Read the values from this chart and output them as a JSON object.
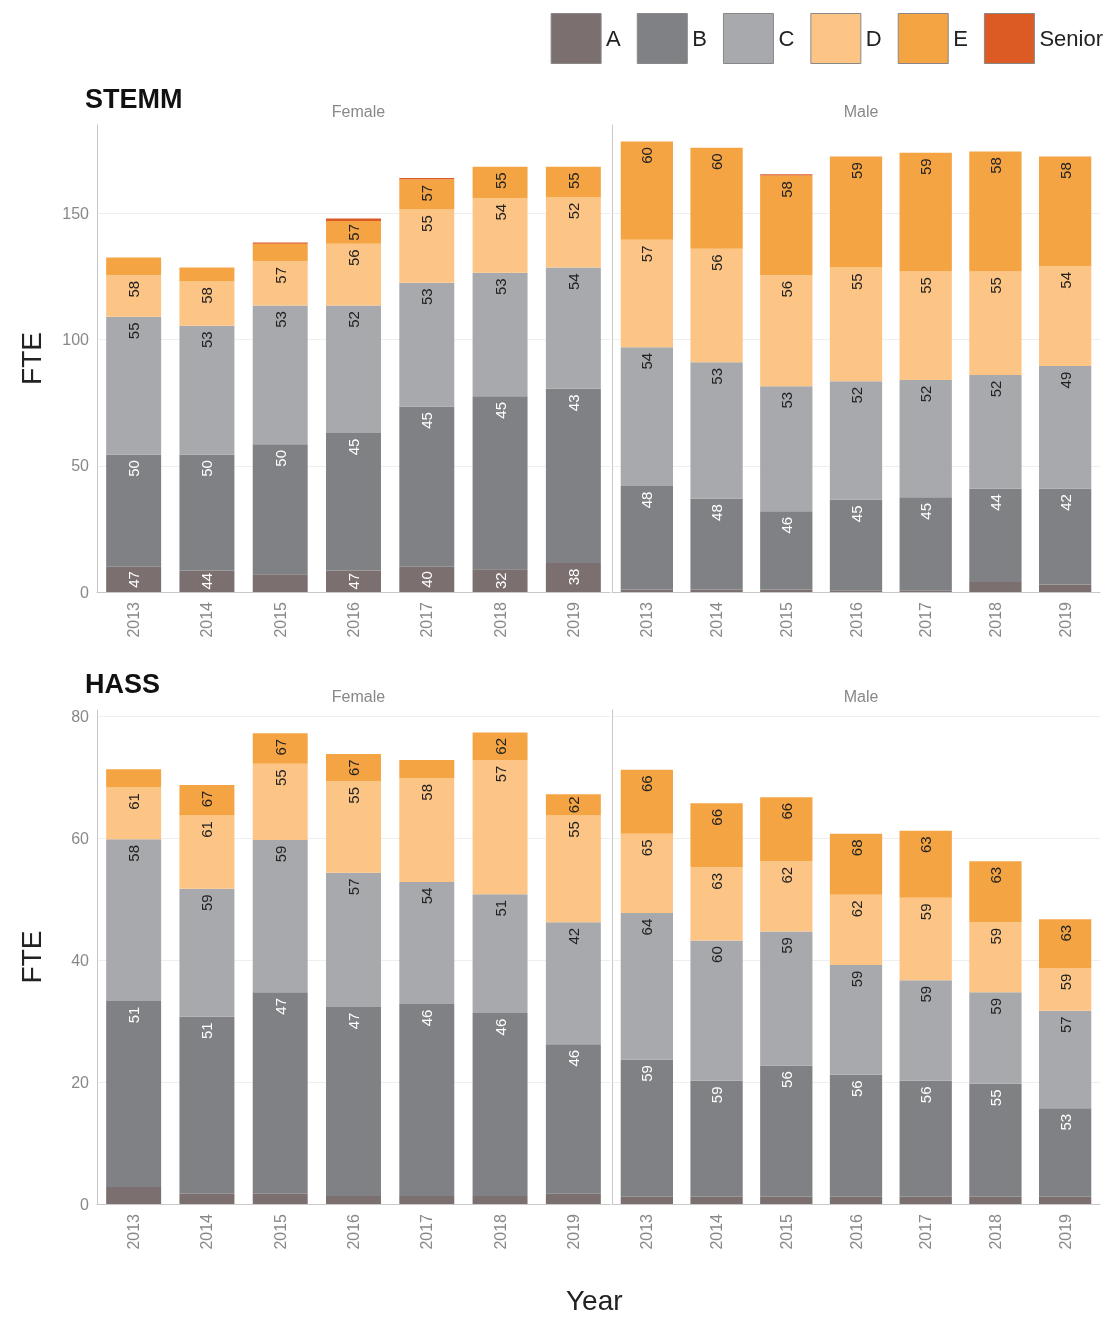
{
  "chart_data": [
    {
      "type": "bar",
      "stacked": true,
      "title": "STEMM",
      "subtitle": "Female",
      "ylabel": "FTE",
      "legend": "top right",
      "grid": "y",
      "categories": [
        "2013",
        "2014",
        "2015",
        "2016",
        "2017",
        "2018",
        "2019"
      ],
      "ylim": [
        0,
        185
      ],
      "yticks": [
        0,
        50,
        100,
        150
      ],
      "series": [
        {
          "name": "A",
          "color": "#7b6f6f",
          "values": [
            10,
            8.5,
            7,
            8.5,
            10,
            9,
            11.5
          ]
        },
        {
          "name": "B",
          "color": "#7f8184",
          "values": [
            44.5,
            46,
            51.5,
            54.5,
            63.5,
            68.5,
            69
          ]
        },
        {
          "name": "C",
          "color": "#a8a9ad",
          "values": [
            54.5,
            51,
            55,
            50.5,
            49,
            49,
            48
          ]
        },
        {
          "name": "D",
          "color": "#fdc585",
          "values": [
            16.5,
            17.5,
            17.5,
            24.5,
            29,
            29.5,
            28
          ]
        },
        {
          "name": "E",
          "color": "#f4a443",
          "values": [
            7,
            5.5,
            7,
            9,
            12,
            12.5,
            12
          ]
        },
        {
          "name": "Senior",
          "color": "#dc5a23",
          "values": [
            null,
            null,
            0.5,
            1,
            0.5,
            null,
            null
          ]
        }
      ],
      "annotations": [
        {
          "text": "47",
          "x": "2013",
          "y": 10
        },
        {
          "text": "50",
          "x": "2013",
          "y": 54.5
        },
        {
          "text": "55",
          "x": "2013",
          "y": 109
        },
        {
          "text": "58",
          "x": "2013",
          "y": 125.5
        },
        {
          "text": "44",
          "x": "2014",
          "y": 8.5
        },
        {
          "text": "50",
          "x": "2014",
          "y": 54.5
        },
        {
          "text": "53",
          "x": "2014",
          "y": 105.5
        },
        {
          "text": "58",
          "x": "2014",
          "y": 123
        },
        {
          "text": "50",
          "x": "2015",
          "y": 58.5
        },
        {
          "text": "53",
          "x": "2015",
          "y": 113.5
        },
        {
          "text": "57",
          "x": "2015",
          "y": 131
        },
        {
          "text": "47",
          "x": "2016",
          "y": 8.5
        },
        {
          "text": "45",
          "x": "2016",
          "y": 63
        },
        {
          "text": "52",
          "x": "2016",
          "y": 113.5
        },
        {
          "text": "56",
          "x": "2016",
          "y": 138
        },
        {
          "text": "57",
          "x": "2016",
          "y": 147
        },
        {
          "text": "40",
          "x": "2017",
          "y": 10
        },
        {
          "text": "45",
          "x": "2017",
          "y": 73.5
        },
        {
          "text": "53",
          "x": "2017",
          "y": 122.5
        },
        {
          "text": "55",
          "x": "2017",
          "y": 151.5
        },
        {
          "text": "57",
          "x": "2017",
          "y": 163.5
        },
        {
          "text": "32",
          "x": "2018",
          "y": 9
        },
        {
          "text": "45",
          "x": "2018",
          "y": 77.5
        },
        {
          "text": "53",
          "x": "2018",
          "y": 126.5
        },
        {
          "text": "54",
          "x": "2018",
          "y": 156
        },
        {
          "text": "55",
          "x": "2018",
          "y": 168.5
        },
        {
          "text": "38",
          "x": "2019",
          "y": 11.5
        },
        {
          "text": "43",
          "x": "2019",
          "y": 80.5
        },
        {
          "text": "54",
          "x": "2019",
          "y": 128.5
        },
        {
          "text": "52",
          "x": "2019",
          "y": 156.5
        },
        {
          "text": "55",
          "x": "2019",
          "y": 168.5
        }
      ]
    },
    {
      "type": "bar",
      "stacked": true,
      "subtitle": "Male",
      "tick_labels": "x",
      "grid": "y",
      "categories": [
        "2013",
        "2014",
        "2015",
        "2016",
        "2017",
        "2018",
        "2019"
      ],
      "ylim": [
        0,
        185
      ],
      "yticks": [
        0,
        50,
        100,
        150
      ],
      "series": [
        {
          "color": "#7b6f6f",
          "values": [
            1,
            1,
            1,
            0.5,
            0.5,
            4,
            3
          ]
        },
        {
          "color": "#7f8184",
          "values": [
            41,
            36,
            31,
            36,
            37,
            37,
            38
          ]
        },
        {
          "color": "#a8a9ad",
          "values": [
            55,
            54,
            49.5,
            47,
            46.5,
            45,
            48.5
          ]
        },
        {
          "color": "#fdc585",
          "values": [
            42.5,
            45,
            44,
            45,
            43,
            41,
            39.5
          ]
        },
        {
          "color": "#f4a443",
          "values": [
            39,
            40,
            39.5,
            44,
            47,
            47.5,
            43.5
          ]
        },
        {
          "color": "#dc5a23",
          "values": [
            null,
            null,
            0.5,
            null,
            null,
            null,
            null
          ]
        }
      ],
      "annotations": [
        {
          "text": "48",
          "x": "2013",
          "y": 42
        },
        {
          "text": "54",
          "x": "2013",
          "y": 97
        },
        {
          "text": "57",
          "x": "2013",
          "y": 139.5
        },
        {
          "text": "60",
          "x": "2013",
          "y": 178.5
        },
        {
          "text": "48",
          "x": "2014",
          "y": 37
        },
        {
          "text": "53",
          "x": "2014",
          "y": 91
        },
        {
          "text": "56",
          "x": "2014",
          "y": 136
        },
        {
          "text": "60",
          "x": "2014",
          "y": 176
        },
        {
          "text": "46",
          "x": "2015",
          "y": 32
        },
        {
          "text": "53",
          "x": "2015",
          "y": 81.5
        },
        {
          "text": "56",
          "x": "2015",
          "y": 125.5
        },
        {
          "text": "58",
          "x": "2015",
          "y": 165
        },
        {
          "text": "45",
          "x": "2016",
          "y": 36.5
        },
        {
          "text": "52",
          "x": "2016",
          "y": 83.5
        },
        {
          "text": "55",
          "x": "2016",
          "y": 128.5
        },
        {
          "text": "59",
          "x": "2016",
          "y": 172.5
        },
        {
          "text": "45",
          "x": "2017",
          "y": 37.5
        },
        {
          "text": "52",
          "x": "2017",
          "y": 84
        },
        {
          "text": "55",
          "x": "2017",
          "y": 127
        },
        {
          "text": "59",
          "x": "2017",
          "y": 174
        },
        {
          "text": "44",
          "x": "2018",
          "y": 41
        },
        {
          "text": "52",
          "x": "2018",
          "y": 86
        },
        {
          "text": "55",
          "x": "2018",
          "y": 127
        },
        {
          "text": "58",
          "x": "2018",
          "y": 174.5
        },
        {
          "text": "42",
          "x": "2019",
          "y": 41
        },
        {
          "text": "49",
          "x": "2019",
          "y": 89.5
        },
        {
          "text": "54",
          "x": "2019",
          "y": 129
        },
        {
          "text": "58",
          "x": "2019",
          "y": 172.5
        }
      ]
    },
    {
      "type": "bar",
      "stacked": true,
      "title": "HASS",
      "subtitle": "Female",
      "ylabel": "FTE",
      "xlabel": "Year",
      "grid": "y",
      "categories": [
        "2013",
        "2014",
        "2015",
        "2016",
        "2017",
        "2018",
        "2019"
      ],
      "ylim": [
        0,
        81
      ],
      "yticks": [
        0,
        20,
        40,
        60,
        80
      ],
      "series": [
        {
          "color": "#7b6f6f",
          "values": [
            2.8,
            1.7,
            1.7,
            1.3,
            1.3,
            1.3,
            1.7
          ]
        },
        {
          "color": "#7f8184",
          "values": [
            30.5,
            29,
            33,
            31,
            31.5,
            30,
            24.5
          ]
        },
        {
          "color": "#a8a9ad",
          "values": [
            26.5,
            21,
            25,
            22,
            20,
            19.5,
            20
          ]
        },
        {
          "color": "#fdc585",
          "values": [
            8.5,
            12,
            12.5,
            15,
            17,
            22,
            17.5
          ]
        },
        {
          "color": "#f4a443",
          "values": [
            3,
            5,
            5,
            4.5,
            3,
            4.5,
            3.5
          ]
        }
      ],
      "annotations": [
        {
          "text": "51",
          "x": "2013",
          "y": 33.3
        },
        {
          "text": "58",
          "x": "2013",
          "y": 59.8
        },
        {
          "text": "61",
          "x": "2013",
          "y": 68.3
        },
        {
          "text": "51",
          "x": "2014",
          "y": 30.7
        },
        {
          "text": "59",
          "x": "2014",
          "y": 51.7
        },
        {
          "text": "61",
          "x": "2014",
          "y": 63.7
        },
        {
          "text": "67",
          "x": "2014",
          "y": 68.7
        },
        {
          "text": "47",
          "x": "2015",
          "y": 34.7
        },
        {
          "text": "59",
          "x": "2015",
          "y": 59.7
        },
        {
          "text": "55",
          "x": "2015",
          "y": 72.2
        },
        {
          "text": "67",
          "x": "2015",
          "y": 77.2
        },
        {
          "text": "47",
          "x": "2016",
          "y": 32.3
        },
        {
          "text": "57",
          "x": "2016",
          "y": 54.3
        },
        {
          "text": "55",
          "x": "2016",
          "y": 69.3
        },
        {
          "text": "67",
          "x": "2016",
          "y": 73.8
        },
        {
          "text": "46",
          "x": "2017",
          "y": 32.8
        },
        {
          "text": "54",
          "x": "2017",
          "y": 52.8
        },
        {
          "text": "58",
          "x": "2017",
          "y": 69.8
        },
        {
          "text": "46",
          "x": "2018",
          "y": 31.3
        },
        {
          "text": "51",
          "x": "2018",
          "y": 50.8
        },
        {
          "text": "57",
          "x": "2018",
          "y": 72.8
        },
        {
          "text": "62",
          "x": "2018",
          "y": 77.3
        },
        {
          "text": "46",
          "x": "2019",
          "y": 26.2
        },
        {
          "text": "42",
          "x": "2019",
          "y": 46.2
        },
        {
          "text": "55",
          "x": "2019",
          "y": 63.7
        },
        {
          "text": "62",
          "x": "2019",
          "y": 67.2
        }
      ]
    },
    {
      "type": "bar",
      "stacked": true,
      "subtitle": "Male",
      "tick_labels": "x",
      "grid": "y",
      "categories": [
        "2013",
        "2014",
        "2015",
        "2016",
        "2017",
        "2018",
        "2019"
      ],
      "ylim": [
        0,
        81
      ],
      "yticks": [
        0,
        20,
        40,
        60,
        80
      ],
      "series": [
        {
          "color": "#7b6f6f",
          "values": [
            1.2,
            1.2,
            1.2,
            1.2,
            1.2,
            1.2,
            1.2
          ]
        },
        {
          "color": "#7f8184",
          "values": [
            22.5,
            19,
            21.5,
            20,
            19,
            18.5,
            14.5
          ]
        },
        {
          "color": "#a8a9ad",
          "values": [
            24,
            23,
            22,
            18,
            16.5,
            15,
            16
          ]
        },
        {
          "color": "#fdc585",
          "values": [
            13,
            12,
            11.5,
            11.5,
            13.5,
            11.5,
            7
          ]
        },
        {
          "color": "#f4a443",
          "values": [
            10.5,
            10.5,
            10.5,
            10,
            11,
            10,
            8
          ]
        }
      ],
      "annotations": [
        {
          "text": "59",
          "x": "2013",
          "y": 23.7
        },
        {
          "text": "64",
          "x": "2013",
          "y": 47.7
        },
        {
          "text": "65",
          "x": "2013",
          "y": 60.7
        },
        {
          "text": "66",
          "x": "2013",
          "y": 71.2
        },
        {
          "text": "59",
          "x": "2014",
          "y": 20.2
        },
        {
          "text": "60",
          "x": "2014",
          "y": 43.2
        },
        {
          "text": "63",
          "x": "2014",
          "y": 55.2
        },
        {
          "text": "66",
          "x": "2014",
          "y": 65.7
        },
        {
          "text": "56",
          "x": "2015",
          "y": 22.7
        },
        {
          "text": "59",
          "x": "2015",
          "y": 44.7
        },
        {
          "text": "62",
          "x": "2015",
          "y": 56.2
        },
        {
          "text": "66",
          "x": "2015",
          "y": 66.7
        },
        {
          "text": "56",
          "x": "2016",
          "y": 21.2
        },
        {
          "text": "59",
          "x": "2016",
          "y": 39.2
        },
        {
          "text": "62",
          "x": "2016",
          "y": 50.7
        },
        {
          "text": "68",
          "x": "2016",
          "y": 60.7
        },
        {
          "text": "56",
          "x": "2017",
          "y": 20.2
        },
        {
          "text": "59",
          "x": "2017",
          "y": 36.7
        },
        {
          "text": "59",
          "x": "2017",
          "y": 50.2
        },
        {
          "text": "63",
          "x": "2017",
          "y": 61.2
        },
        {
          "text": "55",
          "x": "2018",
          "y": 19.7
        },
        {
          "text": "59",
          "x": "2018",
          "y": 34.7
        },
        {
          "text": "59",
          "x": "2018",
          "y": 46.2
        },
        {
          "text": "63",
          "x": "2018",
          "y": 56.2
        },
        {
          "text": "53",
          "x": "2019",
          "y": 15.7
        },
        {
          "text": "57",
          "x": "2019",
          "y": 31.7
        },
        {
          "text": "59",
          "x": "2019",
          "y": 38.7
        },
        {
          "text": "63",
          "x": "2019",
          "y": 46.7
        }
      ]
    }
  ]
}
